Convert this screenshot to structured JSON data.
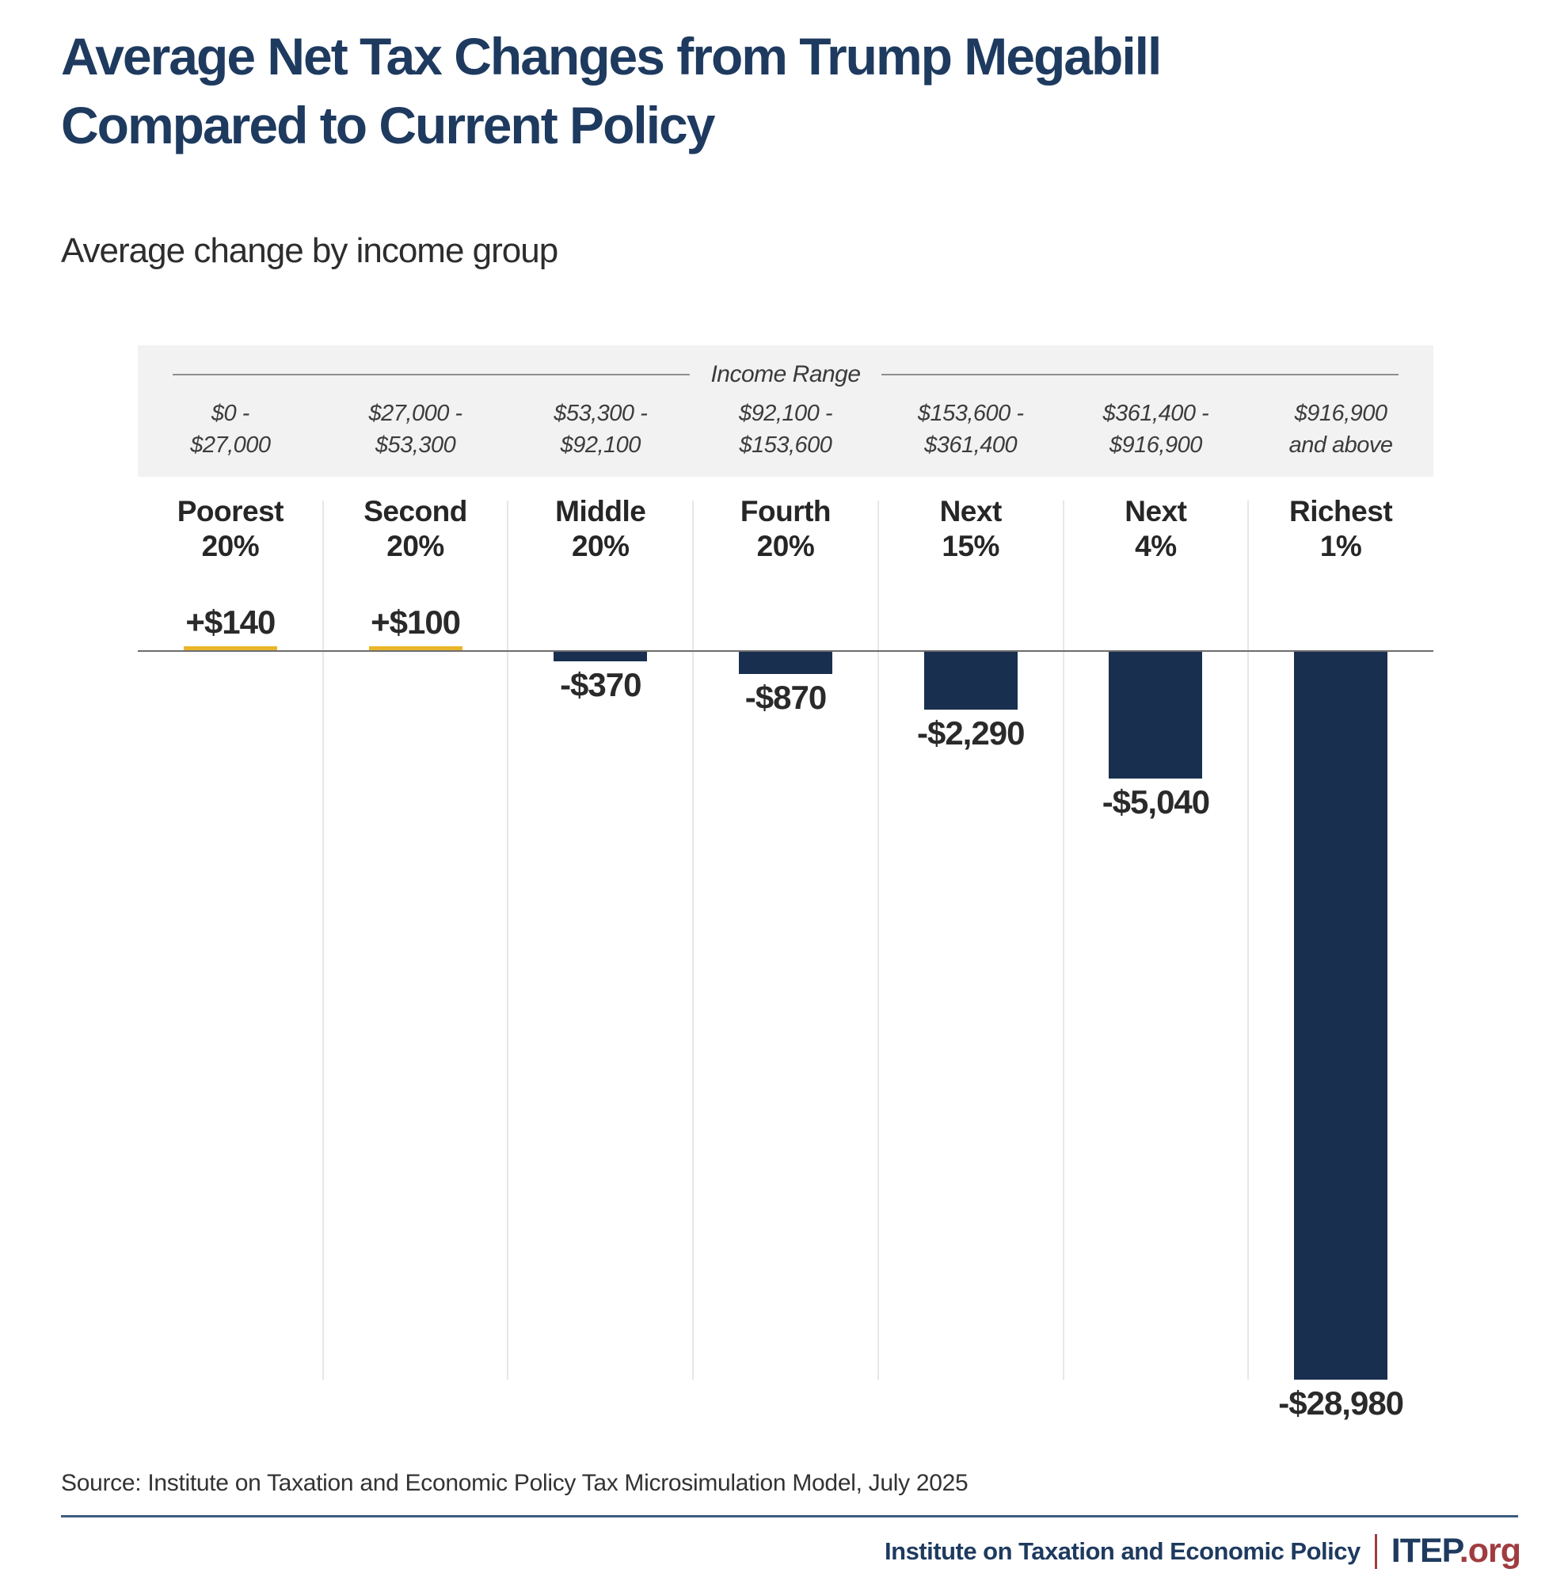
{
  "header": {
    "title_lines": [
      "Average Net Tax Changes from Trump Megabill",
      "Compared to Current Policy"
    ],
    "subtitle": "Average change by income group"
  },
  "chart_data": {
    "type": "bar",
    "title": "Average Net Tax Changes from Trump Megabill Compared to Current Policy",
    "subtitle": "Average change by income group",
    "band_title": "Income Range",
    "income_ranges": [
      [
        "$0 -",
        "$27,000"
      ],
      [
        "$27,000 -",
        "$53,300"
      ],
      [
        "$53,300 -",
        "$92,100"
      ],
      [
        "$92,100 -",
        "$153,600"
      ],
      [
        "$153,600 -",
        "$361,400"
      ],
      [
        "$361,400 -",
        "$916,900"
      ],
      [
        "$916,900",
        "and above"
      ]
    ],
    "categories": [
      [
        "Poorest",
        "20%"
      ],
      [
        "Second",
        "20%"
      ],
      [
        "Middle",
        "20%"
      ],
      [
        "Fourth",
        "20%"
      ],
      [
        "Next",
        "15%"
      ],
      [
        "Next",
        "4%"
      ],
      [
        "Richest",
        "1%"
      ]
    ],
    "values": [
      140,
      100,
      -370,
      -870,
      -2290,
      -5040,
      -28980
    ],
    "value_labels": [
      "+$140",
      "+$100",
      "-$370",
      "-$870",
      "-$2,290",
      "-$5,040",
      "-$28,980"
    ],
    "ylim": [
      -28980,
      140
    ],
    "grid": false,
    "legend": false,
    "positive_color": "#e9b62a",
    "negative_color": "#192f50"
  },
  "footer": {
    "source": "Source: Institute on Taxation and Economic Policy Tax Microsimulation Model, July 2025",
    "org_name": "Institute on Taxation and Economic Policy",
    "logo_text": "ITEP",
    "logo_suffix": ".org"
  }
}
